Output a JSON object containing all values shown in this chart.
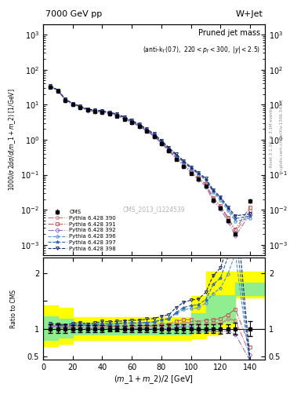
{
  "title_top": "7000 GeV pp",
  "title_right": "W+Jet",
  "plot_title": "Pruned jet mass",
  "plot_subtitle": "(anti-k_{T}(0.7), 220<p_{T}<300, |y|<2.5)",
  "ylabel_main": "1000/σ 2dσ/d(m_1 + m_2) [1/GeV]",
  "ylabel_ratio": "Ratio to CMS",
  "xlabel": "(m_1 + m_2) / 2 [GeV]",
  "watermark": "CMS_2013_I1224539",
  "right_label1": "Rivet 3.1.10; ≥ 3.1M events",
  "right_label2": "mcplots.cern.ch [arXiv:1306.3436]",
  "x_data": [
    5,
    10,
    15,
    20,
    25,
    30,
    35,
    40,
    45,
    50,
    55,
    60,
    65,
    70,
    75,
    80,
    85,
    90,
    95,
    100,
    105,
    110,
    115,
    120,
    125,
    130,
    140
  ],
  "cms_y": [
    32,
    24,
    13.5,
    10,
    8.2,
    7.0,
    6.4,
    6.0,
    5.4,
    4.8,
    3.9,
    3.1,
    2.4,
    1.75,
    1.25,
    0.78,
    0.48,
    0.28,
    0.17,
    0.11,
    0.075,
    0.048,
    0.019,
    0.011,
    0.0048,
    0.002,
    0.018
  ],
  "cms_yerr": [
    2.5,
    1.8,
    1.0,
    0.7,
    0.55,
    0.45,
    0.38,
    0.35,
    0.3,
    0.27,
    0.22,
    0.18,
    0.14,
    0.1,
    0.075,
    0.055,
    0.035,
    0.022,
    0.013,
    0.009,
    0.006,
    0.004,
    0.0016,
    0.001,
    0.0004,
    0.0002,
    0.0025
  ],
  "p390_y": [
    32,
    26,
    13.8,
    10.4,
    8.6,
    7.1,
    6.6,
    6.3,
    5.6,
    5.0,
    4.05,
    3.22,
    2.5,
    1.83,
    1.29,
    0.82,
    0.5,
    0.3,
    0.188,
    0.122,
    0.08,
    0.052,
    0.021,
    0.012,
    0.0056,
    0.0023,
    0.0095
  ],
  "p391_y": [
    32,
    26,
    13.8,
    10.4,
    8.65,
    7.15,
    6.65,
    6.35,
    5.65,
    5.05,
    4.08,
    3.25,
    2.52,
    1.85,
    1.31,
    0.84,
    0.52,
    0.315,
    0.198,
    0.128,
    0.084,
    0.055,
    0.022,
    0.013,
    0.006,
    0.0027,
    0.012
  ],
  "p392_y": [
    33,
    25,
    13.5,
    10.1,
    8.4,
    6.9,
    6.4,
    6.1,
    5.45,
    4.85,
    3.93,
    3.1,
    2.42,
    1.76,
    1.24,
    0.78,
    0.475,
    0.285,
    0.176,
    0.113,
    0.073,
    0.046,
    0.018,
    0.0105,
    0.0046,
    0.0018,
    0.0075
  ],
  "p396_y": [
    34,
    25.5,
    14.2,
    10.6,
    8.85,
    7.35,
    6.85,
    6.55,
    5.85,
    5.25,
    4.28,
    3.4,
    2.65,
    1.95,
    1.4,
    0.9,
    0.56,
    0.355,
    0.228,
    0.15,
    0.103,
    0.07,
    0.031,
    0.019,
    0.0095,
    0.0047,
    0.0057
  ],
  "p397_y": [
    34,
    25.5,
    14.2,
    10.6,
    8.85,
    7.35,
    6.85,
    6.55,
    5.85,
    5.25,
    4.28,
    3.4,
    2.65,
    1.95,
    1.4,
    0.905,
    0.565,
    0.362,
    0.234,
    0.155,
    0.107,
    0.073,
    0.034,
    0.021,
    0.011,
    0.0056,
    0.0066
  ],
  "p398_y": [
    35,
    26,
    14.5,
    10.9,
    9.1,
    7.55,
    7.05,
    6.75,
    6.05,
    5.45,
    4.45,
    3.55,
    2.77,
    2.04,
    1.47,
    0.95,
    0.6,
    0.385,
    0.25,
    0.166,
    0.115,
    0.079,
    0.037,
    0.023,
    0.012,
    0.0067,
    0.0076
  ],
  "color_390": "#c87878",
  "color_391": "#b86060",
  "color_392": "#9070c8",
  "color_396": "#5090d0",
  "color_397": "#3060a8",
  "color_398": "#182868",
  "color_cms": "#000000",
  "band_x": [
    0,
    10,
    20,
    30,
    40,
    50,
    60,
    70,
    80,
    90,
    100,
    110,
    120,
    130,
    150
  ],
  "band_yellow_low": [
    0.68,
    0.72,
    0.8,
    0.8,
    0.8,
    0.8,
    0.8,
    0.8,
    0.8,
    0.8,
    0.82,
    0.88,
    1.02,
    1.55,
    1.55
  ],
  "band_yellow_high": [
    1.42,
    1.38,
    1.2,
    1.2,
    1.2,
    1.2,
    1.2,
    1.2,
    1.2,
    1.2,
    1.58,
    2.02,
    2.02,
    2.02,
    2.02
  ],
  "band_green_low": [
    0.8,
    0.84,
    0.9,
    0.9,
    0.9,
    0.9,
    0.9,
    0.9,
    0.9,
    0.9,
    0.93,
    0.96,
    1.12,
    1.82,
    1.82
  ],
  "band_green_high": [
    1.22,
    1.18,
    1.1,
    1.1,
    1.1,
    1.1,
    1.1,
    1.1,
    1.1,
    1.1,
    1.28,
    1.6,
    1.6,
    1.6,
    1.6
  ],
  "ratio_x": [
    5,
    10,
    15,
    20,
    25,
    30,
    35,
    40,
    45,
    50,
    55,
    60,
    65,
    70,
    75,
    80,
    85,
    90,
    95,
    100,
    105,
    110,
    115,
    120,
    125,
    130,
    140
  ],
  "ratio_390": [
    1.0,
    1.08,
    1.02,
    1.04,
    1.05,
    1.01,
    1.03,
    1.05,
    1.04,
    1.04,
    1.04,
    1.04,
    1.04,
    1.05,
    1.03,
    1.05,
    1.04,
    1.07,
    1.11,
    1.11,
    1.07,
    1.08,
    1.11,
    1.09,
    1.17,
    1.15,
    0.53
  ],
  "ratio_391": [
    1.0,
    1.08,
    1.02,
    1.04,
    1.05,
    1.02,
    1.04,
    1.06,
    1.05,
    1.05,
    1.05,
    1.05,
    1.05,
    1.06,
    1.05,
    1.08,
    1.08,
    1.13,
    1.16,
    1.16,
    1.12,
    1.15,
    1.16,
    1.18,
    1.25,
    1.35,
    0.67
  ],
  "ratio_392": [
    1.03,
    1.04,
    1.0,
    1.01,
    1.02,
    0.99,
    1.0,
    1.02,
    1.01,
    1.01,
    1.01,
    1.0,
    1.01,
    1.01,
    0.99,
    1.0,
    0.99,
    1.02,
    1.04,
    1.03,
    0.97,
    0.96,
    0.95,
    0.95,
    0.96,
    0.9,
    0.42
  ],
  "ratio_396": [
    1.06,
    1.06,
    1.05,
    1.06,
    1.08,
    1.05,
    1.07,
    1.09,
    1.08,
    1.09,
    1.1,
    1.1,
    1.1,
    1.11,
    1.12,
    1.15,
    1.17,
    1.27,
    1.34,
    1.36,
    1.37,
    1.46,
    1.63,
    1.73,
    1.98,
    2.35,
    0.32
  ],
  "ratio_397": [
    1.06,
    1.06,
    1.05,
    1.06,
    1.08,
    1.05,
    1.07,
    1.09,
    1.08,
    1.09,
    1.1,
    1.1,
    1.1,
    1.11,
    1.12,
    1.16,
    1.18,
    1.29,
    1.38,
    1.41,
    1.43,
    1.52,
    1.79,
    1.91,
    2.29,
    2.8,
    0.37
  ],
  "ratio_398": [
    1.09,
    1.08,
    1.07,
    1.09,
    1.11,
    1.08,
    1.1,
    1.13,
    1.12,
    1.13,
    1.14,
    1.15,
    1.15,
    1.17,
    1.18,
    1.22,
    1.25,
    1.38,
    1.47,
    1.51,
    1.53,
    1.65,
    1.95,
    2.09,
    2.5,
    3.35,
    0.42
  ]
}
